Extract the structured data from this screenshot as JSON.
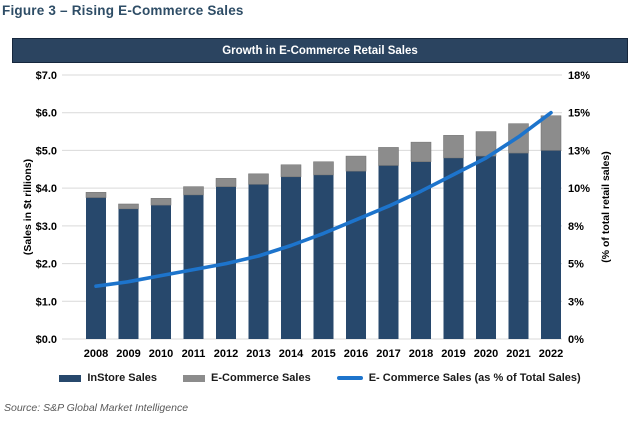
{
  "page": {
    "title": "Figure 3 – Rising E-Commerce Sales",
    "source": "Source: S&P Global Market Intelligence"
  },
  "theme": {
    "title_color": "#2E4D66",
    "header_bg": "#2B4460",
    "grid_color": "#D9D9D9",
    "tick_color": "#000000"
  },
  "chart_data": {
    "type": "bar",
    "subtype": "stacked-bar-with-line",
    "title": "Growth in E-Commerce Retail Sales",
    "categories": [
      "2008",
      "2009",
      "2010",
      "2011",
      "2012",
      "2013",
      "2014",
      "2015",
      "2016",
      "2017",
      "2018",
      "2019",
      "2020",
      "2021",
      "2022"
    ],
    "series": [
      {
        "name": "InStore Sales",
        "type": "bar",
        "axis": "left",
        "color": "#27486C",
        "values": [
          3.75,
          3.45,
          3.55,
          3.82,
          4.04,
          4.1,
          4.3,
          4.35,
          4.45,
          4.6,
          4.7,
          4.8,
          4.85,
          4.93,
          5.0
        ]
      },
      {
        "name": "E-Commerce Sales",
        "type": "bar",
        "axis": "left",
        "color": "#8C8C8C",
        "values": [
          0.14,
          0.13,
          0.18,
          0.22,
          0.22,
          0.28,
          0.32,
          0.35,
          0.4,
          0.48,
          0.52,
          0.6,
          0.65,
          0.78,
          0.92
        ]
      },
      {
        "name": "E- Commerce Sales (as % of Total Sales)",
        "type": "line",
        "axis": "right",
        "color": "#1D74CC",
        "values": [
          3.5,
          3.8,
          4.2,
          4.6,
          5.0,
          5.5,
          6.2,
          7.0,
          7.9,
          8.8,
          9.8,
          10.9,
          12.0,
          13.4,
          15.0
        ]
      }
    ],
    "left_axis": {
      "label": "(Sales in $t rillions)",
      "min": 0,
      "max": 7,
      "ticks": [
        "$0.0",
        "$1.0",
        "$2.0",
        "$3.0",
        "$4.0",
        "$5.0",
        "$6.0",
        "$7.0"
      ]
    },
    "right_axis": {
      "label": "(% of total retail sales)",
      "min": 0,
      "max": 17.5,
      "ticks": [
        "0%",
        "3%",
        "5%",
        "8%",
        "10%",
        "13%",
        "15%",
        "18%"
      ]
    },
    "grid": true,
    "legend_position": "bottom"
  }
}
